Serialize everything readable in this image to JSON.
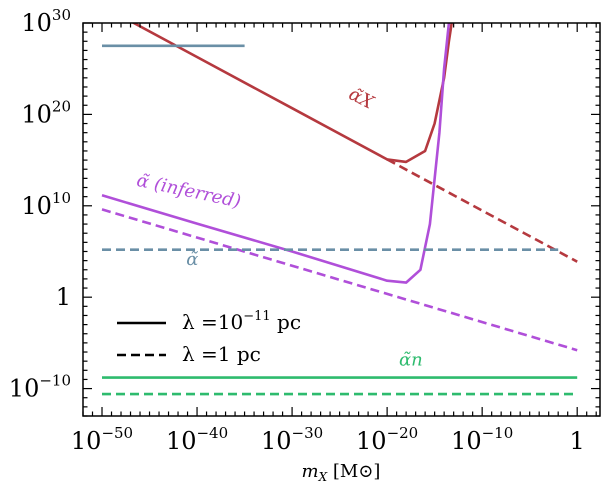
{
  "chart_data": {
    "type": "line",
    "title": "",
    "xscale": "log",
    "yscale": "log",
    "xlabel": "m_X [M_⊙]",
    "ylabel": "",
    "xlim_log10": [
      -52,
      2.4
    ],
    "ylim_log10": [
      -13,
      30
    ],
    "xticks": [
      {
        "log10": -50,
        "label": "10",
        "exp": "−50"
      },
      {
        "log10": -40,
        "label": "10",
        "exp": "−40"
      },
      {
        "log10": -30,
        "label": "10",
        "exp": "−30"
      },
      {
        "log10": -20,
        "label": "10",
        "exp": "−20"
      },
      {
        "log10": -10,
        "label": "10",
        "exp": "−10"
      },
      {
        "log10": 0,
        "label": "1",
        "exp": ""
      }
    ],
    "yticks": [
      {
        "log10": 30,
        "label": "10",
        "exp": "30"
      },
      {
        "log10": 20,
        "label": "10",
        "exp": "20"
      },
      {
        "log10": 10,
        "label": "10",
        "exp": "10"
      },
      {
        "log10": 0,
        "label": "1",
        "exp": ""
      },
      {
        "log10": -10,
        "label": "10",
        "exp": "−10"
      }
    ],
    "legend": {
      "position": "lower-left",
      "entries": [
        {
          "style": "solid",
          "label": "λ =10",
          "exp": "−11",
          "unit": " pc"
        },
        {
          "style": "dashed",
          "label": "λ =1 pc",
          "exp": "",
          "unit": ""
        }
      ]
    },
    "annotations": [
      {
        "text": "α̃X",
        "color": "#b5393f",
        "at_log10": [
          -23,
          21.2
        ],
        "rotation_deg": 27
      },
      {
        "text": "α̃ (inferred)",
        "color": "#b04fd9",
        "at_log10": [
          -41,
          11.0
        ],
        "rotation_deg": 12
      },
      {
        "text": "α̃",
        "color": "#6a8fa6",
        "at_log10": [
          -40.5,
          3.5
        ],
        "rotation_deg": 0
      },
      {
        "text": "α̃n",
        "color": "#2ebb6e",
        "at_log10": [
          -17.5,
          -7.5
        ],
        "rotation_deg": 0
      }
    ],
    "series": [
      {
        "name": "α̃X, λ=10⁻¹¹ pc",
        "color": "#b5393f",
        "style": "solid",
        "x_log10": [
          -52,
          -40,
          -30,
          -20,
          -18,
          -16,
          -15,
          -14,
          -13.5,
          -13.2,
          -13.0
        ],
        "y_log10": [
          33.0,
          26.28,
          20.68,
          15.08,
          14.8,
          16.0,
          19.0,
          24.0,
          28.0,
          30.0,
          31.5
        ]
      },
      {
        "name": "α̃X, λ=1 pc",
        "color": "#b5393f",
        "style": "dashed",
        "x_log10": [
          -20,
          0
        ],
        "y_log10": [
          15.08,
          3.88
        ]
      },
      {
        "name": "α̃ (inferred), λ=10⁻¹¹ pc",
        "color": "#b04fd9",
        "style": "solid",
        "x_log10": [
          -50,
          -40,
          -30,
          -20,
          -18,
          -16.5,
          -15.5,
          -14.5,
          -14.0,
          -13.7,
          -13.5
        ],
        "y_log10": [
          11.15,
          8.05,
          5.0,
          1.8,
          1.6,
          3.0,
          8.0,
          18.0,
          25.0,
          28.0,
          30.0
        ]
      },
      {
        "name": "α̃ (inferred), λ=1 pc",
        "color": "#b04fd9",
        "style": "dashed",
        "x_log10": [
          -50,
          0
        ],
        "y_log10": [
          9.6,
          -5.8
        ]
      },
      {
        "name": "α̃ high, λ=10⁻¹¹ pc",
        "color": "#6a8fa6",
        "style": "solid",
        "x_log10": [
          -50,
          -35
        ],
        "y_log10": [
          27.5,
          27.5
        ]
      },
      {
        "name": "α̃, λ=1 pc",
        "color": "#6a8fa6",
        "style": "dashed",
        "x_log10": [
          -50,
          -2
        ],
        "y_log10": [
          5.2,
          5.2
        ]
      },
      {
        "name": "α̃n, λ=10⁻¹¹ pc",
        "color": "#2ebb6e",
        "style": "solid",
        "x_log10": [
          -50,
          0
        ],
        "y_log10": [
          -8.8,
          -8.8
        ]
      },
      {
        "name": "α̃n, λ=1 pc",
        "color": "#2ebb6e",
        "style": "dashed",
        "x_log10": [
          -50,
          0
        ],
        "y_log10": [
          -10.6,
          -10.6
        ]
      }
    ]
  }
}
